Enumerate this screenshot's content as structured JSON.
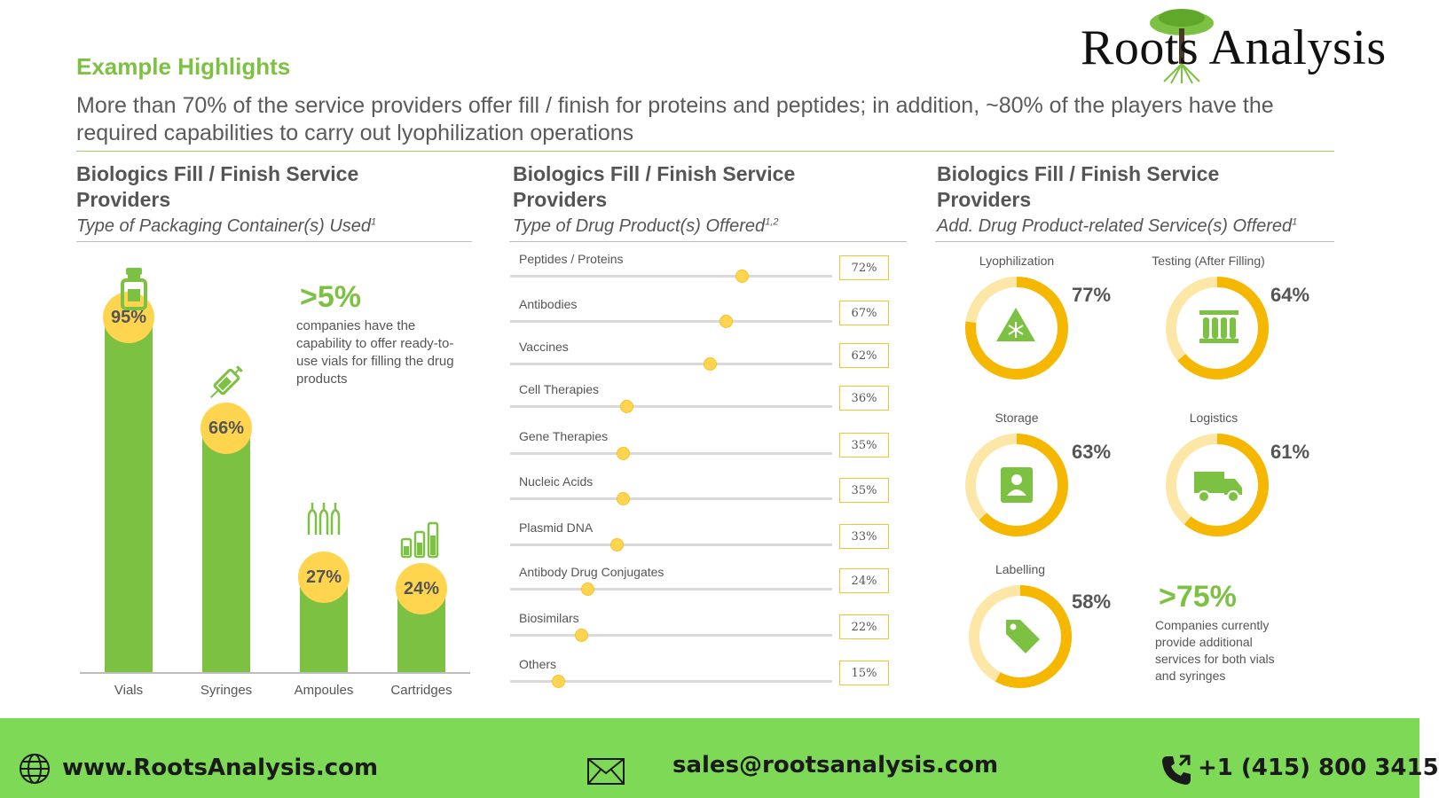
{
  "brand": {
    "logo_text": "Roots Analysis"
  },
  "header": {
    "section_title": "Example Highlights",
    "headline": "More than 70% of the service providers offer fill / finish for proteins and peptides; in addition, ~80% of the players have the required capabilities to carry out lyophilization operations"
  },
  "panels": [
    {
      "title": "Biologics Fill / Finish Service Providers",
      "subtitle": "Type of Packaging Container(s) Used",
      "sup": "1"
    },
    {
      "title": "Biologics Fill / Finish Service Providers",
      "subtitle": "Type of Drug Product(s) Offered",
      "sup": "1,2"
    },
    {
      "title": "Biologics Fill / Finish Service Providers",
      "subtitle": "Add. Drug Product-related Service(s) Offered",
      "sup": "1"
    }
  ],
  "containers_callout": {
    "value": ">5%",
    "text": "companies have the capability to offer ready-to-use vials for filling the drug products"
  },
  "services_callout": {
    "value": ">75%",
    "text": "Companies currently provide additional services for both vials and syringes"
  },
  "chart_data": [
    {
      "type": "bar",
      "categories": [
        "Vials",
        "Syringes",
        "Ampoules",
        "Cartridges"
      ],
      "values": [
        95,
        66,
        27,
        24
      ],
      "value_labels": [
        "95%",
        "66%",
        "27%",
        "24%"
      ],
      "icons": [
        "vial-icon",
        "syringe-icon",
        "ampoules-icon",
        "cartridges-icon"
      ],
      "ylim": [
        0,
        100
      ],
      "color": "#7dc142",
      "bubble_color": "#ffd54f"
    },
    {
      "type": "bar",
      "orientation": "horizontal-slider",
      "categories": [
        "Peptides / Proteins",
        "Antibodies",
        "Vaccines",
        "Cell Therapies",
        "Gene Therapies",
        "Nucleic Acids",
        "Plasmid DNA",
        "Antibody Drug Conjugates",
        "Biosimilars",
        "Others"
      ],
      "values": [
        72,
        67,
        62,
        36,
        35,
        35,
        33,
        24,
        22,
        15
      ],
      "value_labels": [
        "72%",
        "67%",
        "62%",
        "36%",
        "35%",
        "35%",
        "33%",
        "24%",
        "22%",
        "15%"
      ],
      "xlim": [
        0,
        100
      ],
      "thumb_color": "#ffd54f"
    },
    {
      "type": "pie",
      "style": "donut",
      "items": [
        {
          "label": "Lyophilization",
          "value": 77,
          "value_label": "77%",
          "icon": "snowflake-warning-icon"
        },
        {
          "label": "Testing (After Filling)",
          "value": 64,
          "value_label": "64%",
          "icon": "test-tubes-icon"
        },
        {
          "label": "Storage",
          "value": 63,
          "value_label": "63%",
          "icon": "storage-box-icon"
        },
        {
          "label": "Logistics",
          "value": 61,
          "value_label": "61%",
          "icon": "truck-icon"
        },
        {
          "label": "Labelling",
          "value": 58,
          "value_label": "58%",
          "icon": "tag-icon"
        }
      ],
      "ring_color": "#f5b700",
      "track_color": "#fde7a6",
      "icon_color": "#7dc142"
    }
  ],
  "footer": {
    "website": "www.RootsAnalysis.com",
    "email": "sales@rootsanalysis.com",
    "phone": "+1 (415) 800 3415"
  }
}
